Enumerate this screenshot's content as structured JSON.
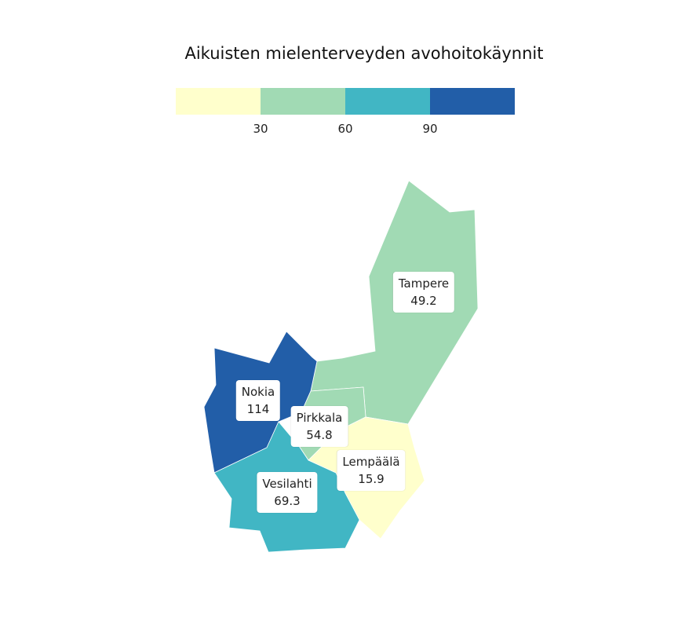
{
  "title": "Aikuisten mielenterveyden avohoitokäynnit",
  "legend": {
    "colors": [
      "#ffffcc",
      "#a1dab4",
      "#41b6c4",
      "#225ea8"
    ],
    "breaks": [
      "30",
      "60",
      "90"
    ]
  },
  "regions": [
    {
      "name": "Tampere",
      "value": "49.2",
      "color": "#a1dab4"
    },
    {
      "name": "Nokia",
      "value": "114",
      "color": "#225ea8"
    },
    {
      "name": "Pirkkala",
      "value": "54.8",
      "color": "#a1dab4"
    },
    {
      "name": "Lempäälä",
      "value": "15.9",
      "color": "#ffffcc"
    },
    {
      "name": "Vesilahti",
      "value": "69.3",
      "color": "#41b6c4"
    }
  ]
}
